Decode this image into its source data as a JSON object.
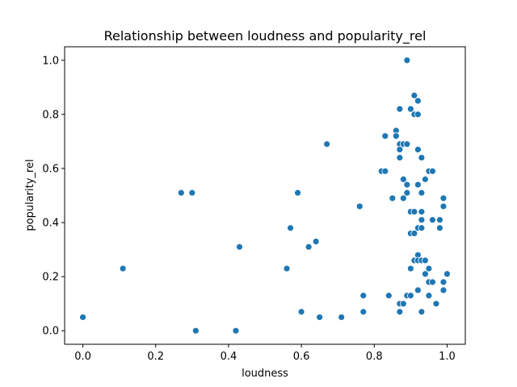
{
  "chart_data": {
    "type": "scatter",
    "title": "Relationship between loudness and popularity_rel",
    "xlabel": "loudness",
    "ylabel": "popularity_rel",
    "xlim": [
      -0.05,
      1.05
    ],
    "ylim": [
      -0.05,
      1.05
    ],
    "xticks": [
      "0.0",
      "0.2",
      "0.4",
      "0.6",
      "0.8",
      "1.0"
    ],
    "yticks": [
      "0.0",
      "0.2",
      "0.4",
      "0.6",
      "0.8",
      "1.0"
    ],
    "grid": false,
    "point_color": "#1f77b4",
    "points": [
      [
        0.0,
        0.05
      ],
      [
        0.11,
        0.23
      ],
      [
        0.27,
        0.51
      ],
      [
        0.3,
        0.51
      ],
      [
        0.31,
        0.0
      ],
      [
        0.42,
        0.0
      ],
      [
        0.43,
        0.31
      ],
      [
        0.56,
        0.23
      ],
      [
        0.57,
        0.38
      ],
      [
        0.59,
        0.51
      ],
      [
        0.6,
        0.07
      ],
      [
        0.62,
        0.31
      ],
      [
        0.64,
        0.33
      ],
      [
        0.65,
        0.05
      ],
      [
        0.67,
        0.69
      ],
      [
        0.71,
        0.05
      ],
      [
        0.76,
        0.46
      ],
      [
        0.77,
        0.13
      ],
      [
        0.77,
        0.07
      ],
      [
        0.82,
        0.59
      ],
      [
        0.83,
        0.59
      ],
      [
        0.83,
        0.72
      ],
      [
        0.84,
        0.13
      ],
      [
        0.85,
        0.49
      ],
      [
        0.86,
        0.74
      ],
      [
        0.86,
        0.72
      ],
      [
        0.87,
        0.69
      ],
      [
        0.87,
        0.67
      ],
      [
        0.87,
        0.64
      ],
      [
        0.87,
        0.82
      ],
      [
        0.87,
        0.1
      ],
      [
        0.87,
        0.07
      ],
      [
        0.88,
        0.69
      ],
      [
        0.88,
        0.56
      ],
      [
        0.88,
        0.49
      ],
      [
        0.88,
        0.1
      ],
      [
        0.89,
        0.69
      ],
      [
        0.89,
        0.54
      ],
      [
        0.89,
        0.51
      ],
      [
        0.89,
        1.0
      ],
      [
        0.89,
        0.13
      ],
      [
        0.9,
        0.44
      ],
      [
        0.9,
        0.36
      ],
      [
        0.9,
        0.23
      ],
      [
        0.9,
        0.13
      ],
      [
        0.9,
        0.82
      ],
      [
        0.91,
        0.87
      ],
      [
        0.91,
        0.8
      ],
      [
        0.91,
        0.44
      ],
      [
        0.91,
        0.36
      ],
      [
        0.91,
        0.26
      ],
      [
        0.92,
        0.85
      ],
      [
        0.92,
        0.8
      ],
      [
        0.92,
        0.67
      ],
      [
        0.92,
        0.54
      ],
      [
        0.92,
        0.38
      ],
      [
        0.92,
        0.28
      ],
      [
        0.92,
        0.26
      ],
      [
        0.92,
        0.15
      ],
      [
        0.93,
        0.64
      ],
      [
        0.93,
        0.51
      ],
      [
        0.93,
        0.44
      ],
      [
        0.93,
        0.41
      ],
      [
        0.93,
        0.38
      ],
      [
        0.93,
        0.26
      ],
      [
        0.93,
        0.07
      ],
      [
        0.94,
        0.56
      ],
      [
        0.94,
        0.26
      ],
      [
        0.94,
        0.21
      ],
      [
        0.95,
        0.59
      ],
      [
        0.95,
        0.23
      ],
      [
        0.95,
        0.18
      ],
      [
        0.95,
        0.13
      ],
      [
        0.96,
        0.59
      ],
      [
        0.96,
        0.41
      ],
      [
        0.96,
        0.18
      ],
      [
        0.97,
        0.1
      ],
      [
        0.98,
        0.41
      ],
      [
        0.98,
        0.38
      ],
      [
        0.99,
        0.49
      ],
      [
        0.99,
        0.46
      ],
      [
        0.99,
        0.15
      ],
      [
        0.99,
        0.18
      ],
      [
        1.0,
        0.21
      ]
    ]
  }
}
